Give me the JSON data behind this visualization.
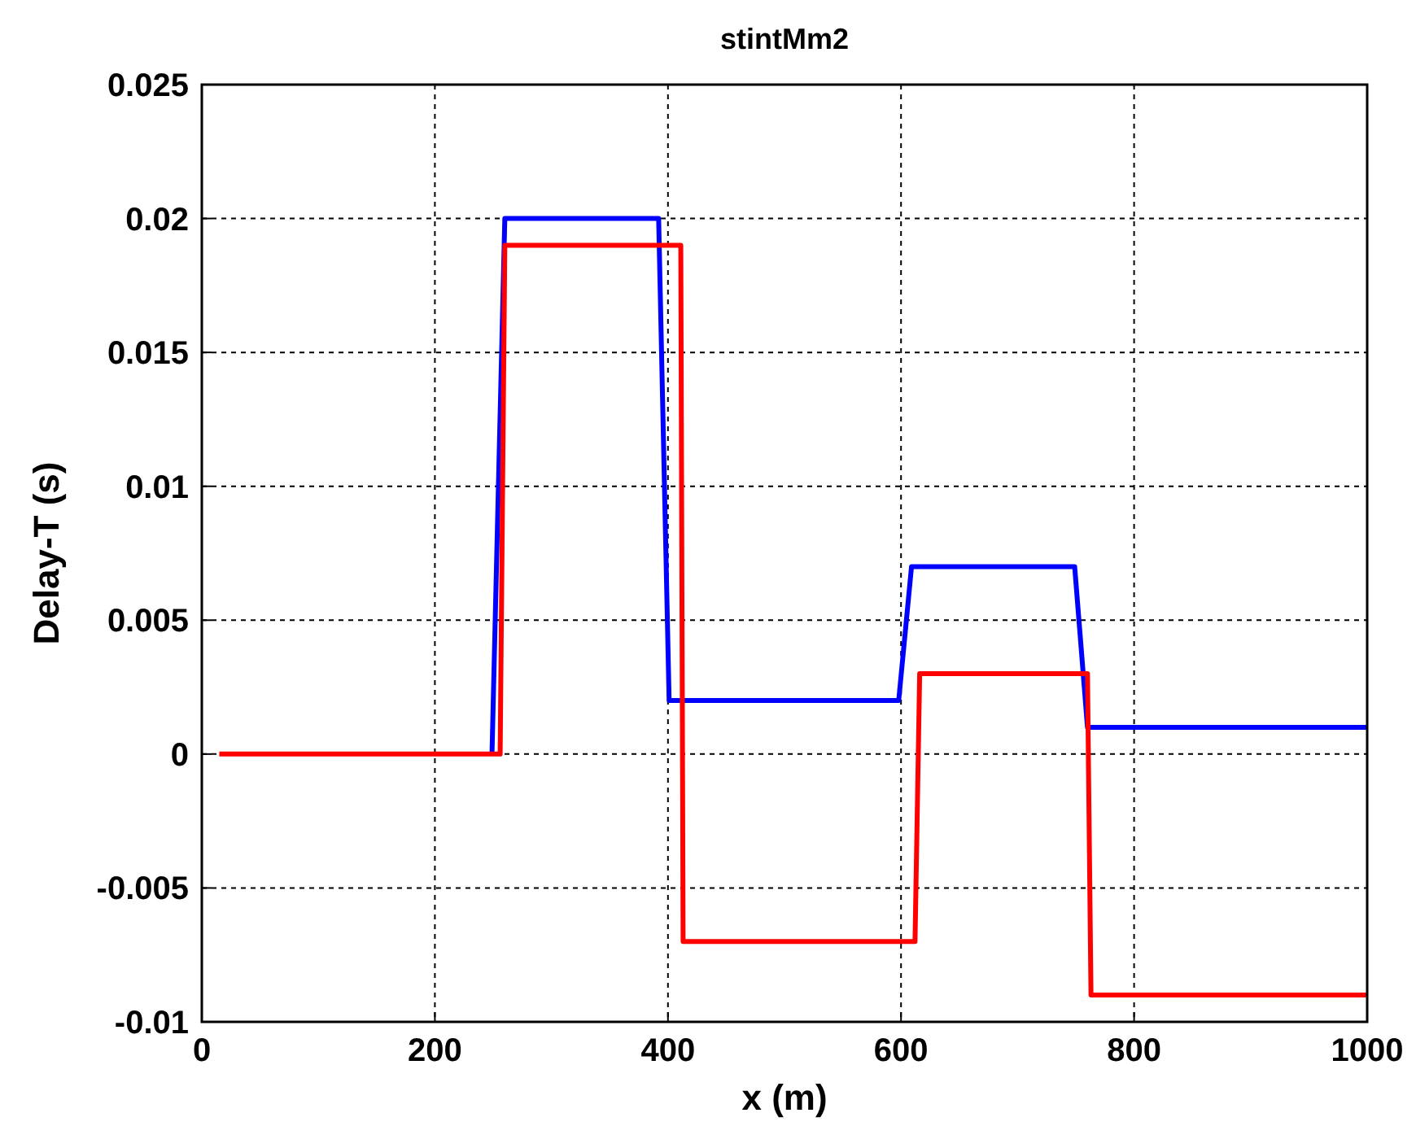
{
  "chart_data": {
    "type": "line",
    "title": "stintMm2",
    "xlabel": "x (m)",
    "ylabel": "Delay-T (s)",
    "xlim": [
      0,
      1000
    ],
    "xticks": [
      0,
      200,
      400,
      600,
      800,
      1000
    ],
    "ylim": [
      -0.01,
      0.025
    ],
    "yticks": [
      {
        "value": -0.01,
        "label": "-0.01"
      },
      {
        "value": -0.005,
        "label": "-0.005"
      },
      0,
      0.005,
      0.01,
      0.015,
      0.02,
      0.025
    ],
    "grid": true,
    "line_style": "solid",
    "marker": "none",
    "series": [
      {
        "color": "#0000ff",
        "x": [
          249,
          260,
          392,
          401,
          598,
          609,
          749,
          760,
          1000
        ],
        "values": [
          0,
          0.02,
          0.02,
          0.002,
          0.002,
          0.007,
          0.007,
          0.001,
          0.001
        ]
      },
      {
        "color": "#ff0000",
        "x": [
          15,
          256,
          260,
          411,
          413,
          612,
          616,
          760,
          763,
          1000
        ],
        "values": [
          0,
          0,
          0.019,
          0.019,
          -0.007,
          -0.007,
          0.003,
          0.003,
          -0.009,
          -0.009
        ]
      }
    ]
  }
}
